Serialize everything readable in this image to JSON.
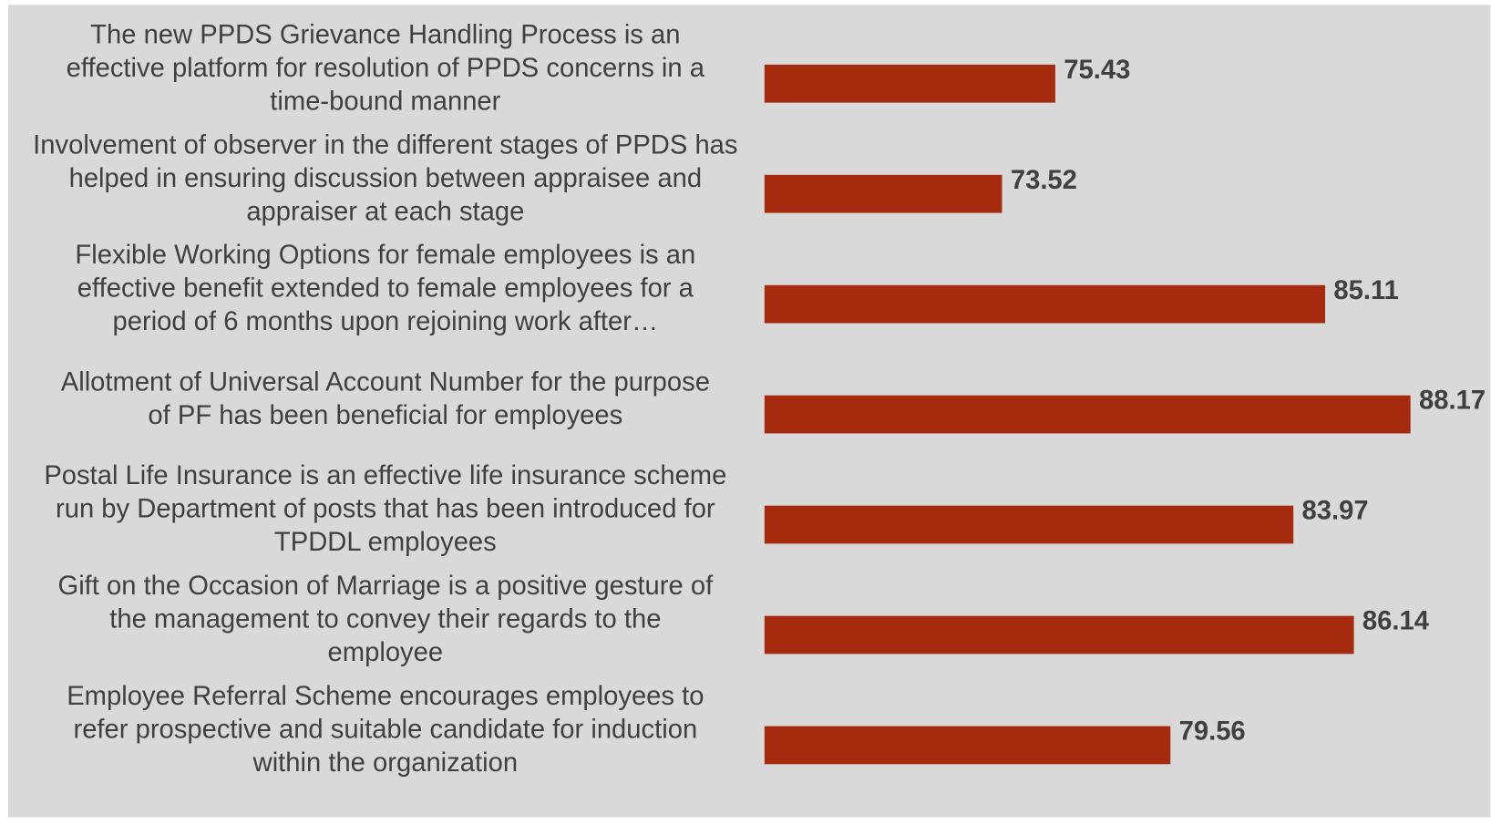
{
  "chart_data": {
    "type": "bar",
    "orientation": "horizontal",
    "categories": [
      [
        "The new PPDS Grievance Handling Process is an",
        "effective platform for resolution of PPDS concerns in a",
        "time-bound manner"
      ],
      [
        "Involvement of observer in the different stages of PPDS has",
        "helped in ensuring discussion between appraisee and",
        "appraiser at each stage"
      ],
      [
        "Flexible Working Options for female employees is an",
        "effective benefit extended to female employees for a",
        "period of 6 months upon rejoining work after…"
      ],
      [
        "Allotment of Universal Account Number for the purpose",
        "of PF has been beneficial for employees"
      ],
      [
        "Postal Life Insurance is an effective life insurance scheme",
        "run by Department of posts that has been introduced for",
        "TPDDL employees"
      ],
      [
        "Gift on the Occasion of Marriage is a positive gesture of",
        "the management to convey their regards to the",
        "employee"
      ],
      [
        "Employee Referral Scheme encourages employees to",
        "refer prospective and suitable candidate for induction",
        "within the organization"
      ]
    ],
    "values": [
      75.43,
      73.52,
      85.11,
      88.17,
      83.97,
      86.14,
      79.56
    ],
    "color": "#a52a0e",
    "xlim": [
      65,
      90
    ]
  }
}
